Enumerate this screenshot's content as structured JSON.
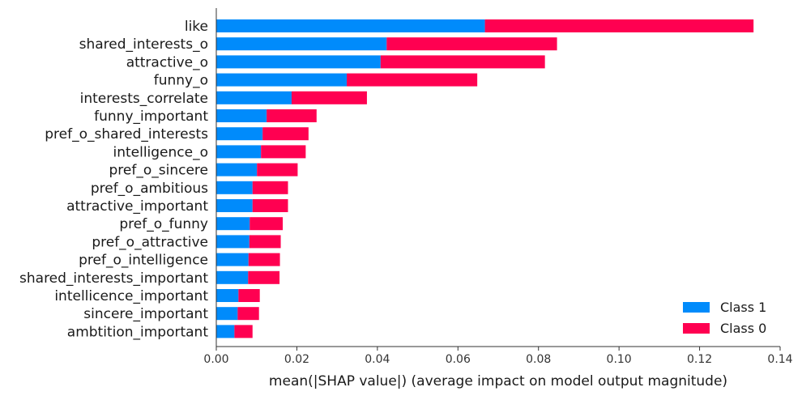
{
  "chart_data": {
    "type": "bar",
    "orientation": "horizontal",
    "stacked": true,
    "title": "",
    "xlabel": "mean(|SHAP value|) (average impact on model output magnitude)",
    "ylabel": "",
    "xlim": [
      0,
      0.14
    ],
    "x_ticks": [
      0.0,
      0.02,
      0.04,
      0.06,
      0.08,
      0.1,
      0.12,
      0.14
    ],
    "x_tick_labels": [
      "0.00",
      "0.02",
      "0.04",
      "0.06",
      "0.08",
      "0.10",
      "0.12",
      "0.14"
    ],
    "grid": false,
    "legend_position": "bottom-right",
    "categories": [
      "like",
      "shared_interests_o",
      "attractive_o",
      "funny_o",
      "interests_correlate",
      "funny_important",
      "pref_o_shared_interests",
      "intelligence_o",
      "pref_o_sincere",
      "pref_o_ambitious",
      "attractive_important",
      "pref_o_funny",
      "pref_o_attractive",
      "pref_o_intelligence",
      "shared_interests_important",
      "intellicence_important",
      "sincere_important",
      "ambtition_important"
    ],
    "series": [
      {
        "name": "Class 1",
        "color": "#008bfb",
        "values": [
          0.0667,
          0.0423,
          0.0408,
          0.0324,
          0.0187,
          0.0125,
          0.0115,
          0.0111,
          0.0101,
          0.009,
          0.009,
          0.0083,
          0.0082,
          0.008,
          0.0079,
          0.0055,
          0.0053,
          0.0045
        ]
      },
      {
        "name": "Class 0",
        "color": "#ff0051",
        "values": [
          0.0667,
          0.0423,
          0.0408,
          0.0324,
          0.0187,
          0.0124,
          0.0114,
          0.0111,
          0.0101,
          0.0088,
          0.0088,
          0.0082,
          0.0078,
          0.0078,
          0.0078,
          0.0053,
          0.0053,
          0.0045
        ]
      }
    ]
  }
}
